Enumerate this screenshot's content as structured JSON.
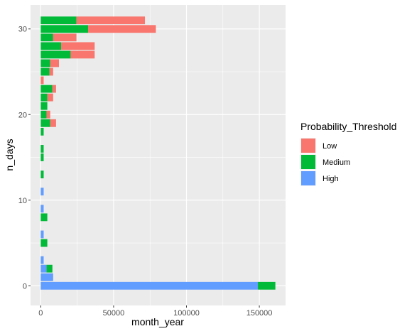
{
  "chart_data": {
    "type": "bar",
    "orientation": "horizontal",
    "stacked": true,
    "xlabel": "month_year",
    "ylabel": "n_days",
    "xlim": [
      -7000,
      168000
    ],
    "ylim": [
      -2.3,
      32.8
    ],
    "x_ticks": [
      0,
      50000,
      100000,
      150000
    ],
    "x_tick_labels": [
      "0",
      "50000",
      "100000",
      "150000"
    ],
    "y_ticks": [
      0,
      10,
      20,
      30
    ],
    "y_tick_labels": [
      "0",
      "10",
      "20",
      "30"
    ],
    "grid": true,
    "legend_position": "right",
    "legend": {
      "title": "Probability_Threshold",
      "items": [
        {
          "label": "Low",
          "color": "#F8766D"
        },
        {
          "label": "Medium",
          "color": "#00BA38"
        },
        {
          "label": "High",
          "color": "#619CFF"
        }
      ]
    },
    "stack_order": [
      "High",
      "Medium",
      "Low"
    ],
    "series": [
      {
        "name": "High",
        "color": "#619CFF",
        "values": [
          {
            "y": 0,
            "x": 149000
          },
          {
            "y": 1,
            "x": 8500
          },
          {
            "y": 2,
            "x": 4000
          },
          {
            "y": 3,
            "x": 2000
          },
          {
            "y": 6,
            "x": 2000
          },
          {
            "y": 9,
            "x": 2000
          },
          {
            "y": 11,
            "x": 2000
          }
        ]
      },
      {
        "name": "Medium",
        "color": "#00BA38",
        "values": [
          {
            "y": 0,
            "x": 12000
          },
          {
            "y": 2,
            "x": 4000
          },
          {
            "y": 5,
            "x": 4500
          },
          {
            "y": 8,
            "x": 4500
          },
          {
            "y": 13,
            "x": 2000
          },
          {
            "y": 15,
            "x": 2000
          },
          {
            "y": 16,
            "x": 2000
          },
          {
            "y": 18,
            "x": 2000
          },
          {
            "y": 19,
            "x": 6500
          },
          {
            "y": 20,
            "x": 4000
          },
          {
            "y": 21,
            "x": 4500
          },
          {
            "y": 22,
            "x": 4500
          },
          {
            "y": 23,
            "x": 8000
          },
          {
            "y": 25,
            "x": 6000
          },
          {
            "y": 26,
            "x": 6500
          },
          {
            "y": 27,
            "x": 20500
          },
          {
            "y": 28,
            "x": 14000
          },
          {
            "y": 29,
            "x": 8500
          },
          {
            "y": 30,
            "x": 32500
          },
          {
            "y": 31,
            "x": 24500
          }
        ]
      },
      {
        "name": "Low",
        "color": "#F8766D",
        "values": [
          {
            "y": 19,
            "x": 4000
          },
          {
            "y": 20,
            "x": 2500
          },
          {
            "y": 22,
            "x": 4000
          },
          {
            "y": 23,
            "x": 2500
          },
          {
            "y": 24,
            "x": 2000
          },
          {
            "y": 25,
            "x": 2500
          },
          {
            "y": 26,
            "x": 6000
          },
          {
            "y": 27,
            "x": 16500
          },
          {
            "y": 28,
            "x": 23000
          },
          {
            "y": 29,
            "x": 16000
          },
          {
            "y": 30,
            "x": 46500
          },
          {
            "y": 31,
            "x": 47000
          }
        ]
      }
    ]
  }
}
